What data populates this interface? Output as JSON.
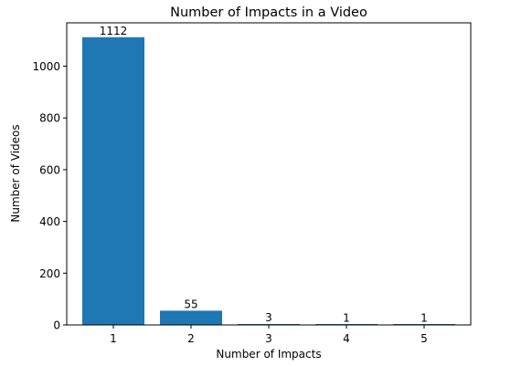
{
  "chart_data": {
    "type": "bar",
    "title": "Number of Impacts in a Video",
    "xlabel": "Number of Impacts",
    "ylabel": "Number of Videos",
    "categories": [
      "1",
      "2",
      "3",
      "4",
      "5"
    ],
    "values": [
      1112,
      55,
      3,
      1,
      1
    ],
    "data_labels": [
      "1112",
      "55",
      "3",
      "1",
      "1"
    ],
    "yticks": [
      0,
      200,
      400,
      600,
      800,
      1000
    ],
    "ytick_labels": [
      "0",
      "200",
      "400",
      "600",
      "800",
      "1000"
    ],
    "ylim": [
      0,
      1167.6
    ],
    "grid": false,
    "legend": "none",
    "bar_color": "#1f77b4"
  }
}
